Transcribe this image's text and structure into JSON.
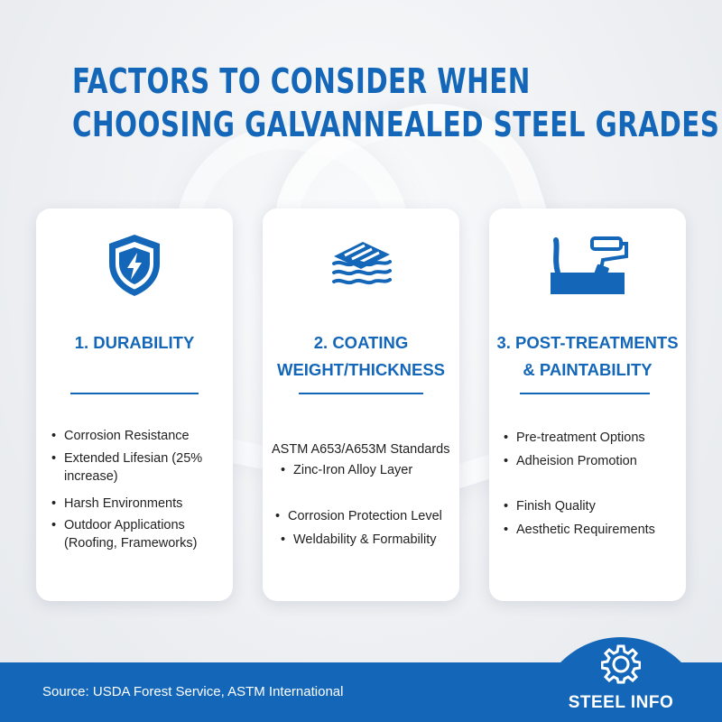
{
  "title": {
    "line1": "FACTORS TO CONSIDER WHEN",
    "line2": "CHOOSING GALVANNEALED STEEL GRADES"
  },
  "cards": [
    {
      "icon": "shield-bolt-icon",
      "heading": "1. DURABILITY",
      "items": [
        "Corrosion Resistance",
        "Extended Lifesian (25% increase)",
        "Harsh Environments",
        "Outdoor Applications (Roofing, Frameworks)"
      ]
    },
    {
      "icon": "layered-sheets-icon",
      "heading_line1": "2. COATING",
      "heading_line2": "WEIGHT/THICKNESS",
      "standard": "ASTM A653/A653M Standards",
      "items": [
        "Zinc-Iron Alloy Layer",
        "Corrosion Protection Level",
        "Weldability & Formability"
      ]
    },
    {
      "icon": "paint-roller-icon",
      "heading_line1": "3. POST-TREATMENTS",
      "heading_line2": "& PAINTABILITY",
      "items": [
        "Pre-treatment Options",
        "Adheision Promotion",
        "Finish Quality",
        "Aesthetic Requirements"
      ]
    }
  ],
  "footer": {
    "source": "Source: USDA Forest Service, ASTM International",
    "brand": "STEEL INFO",
    "brand_icon": "gear-icon"
  },
  "colors": {
    "accent": "#1467b8",
    "text": "#222222",
    "card": "#ffffff"
  }
}
